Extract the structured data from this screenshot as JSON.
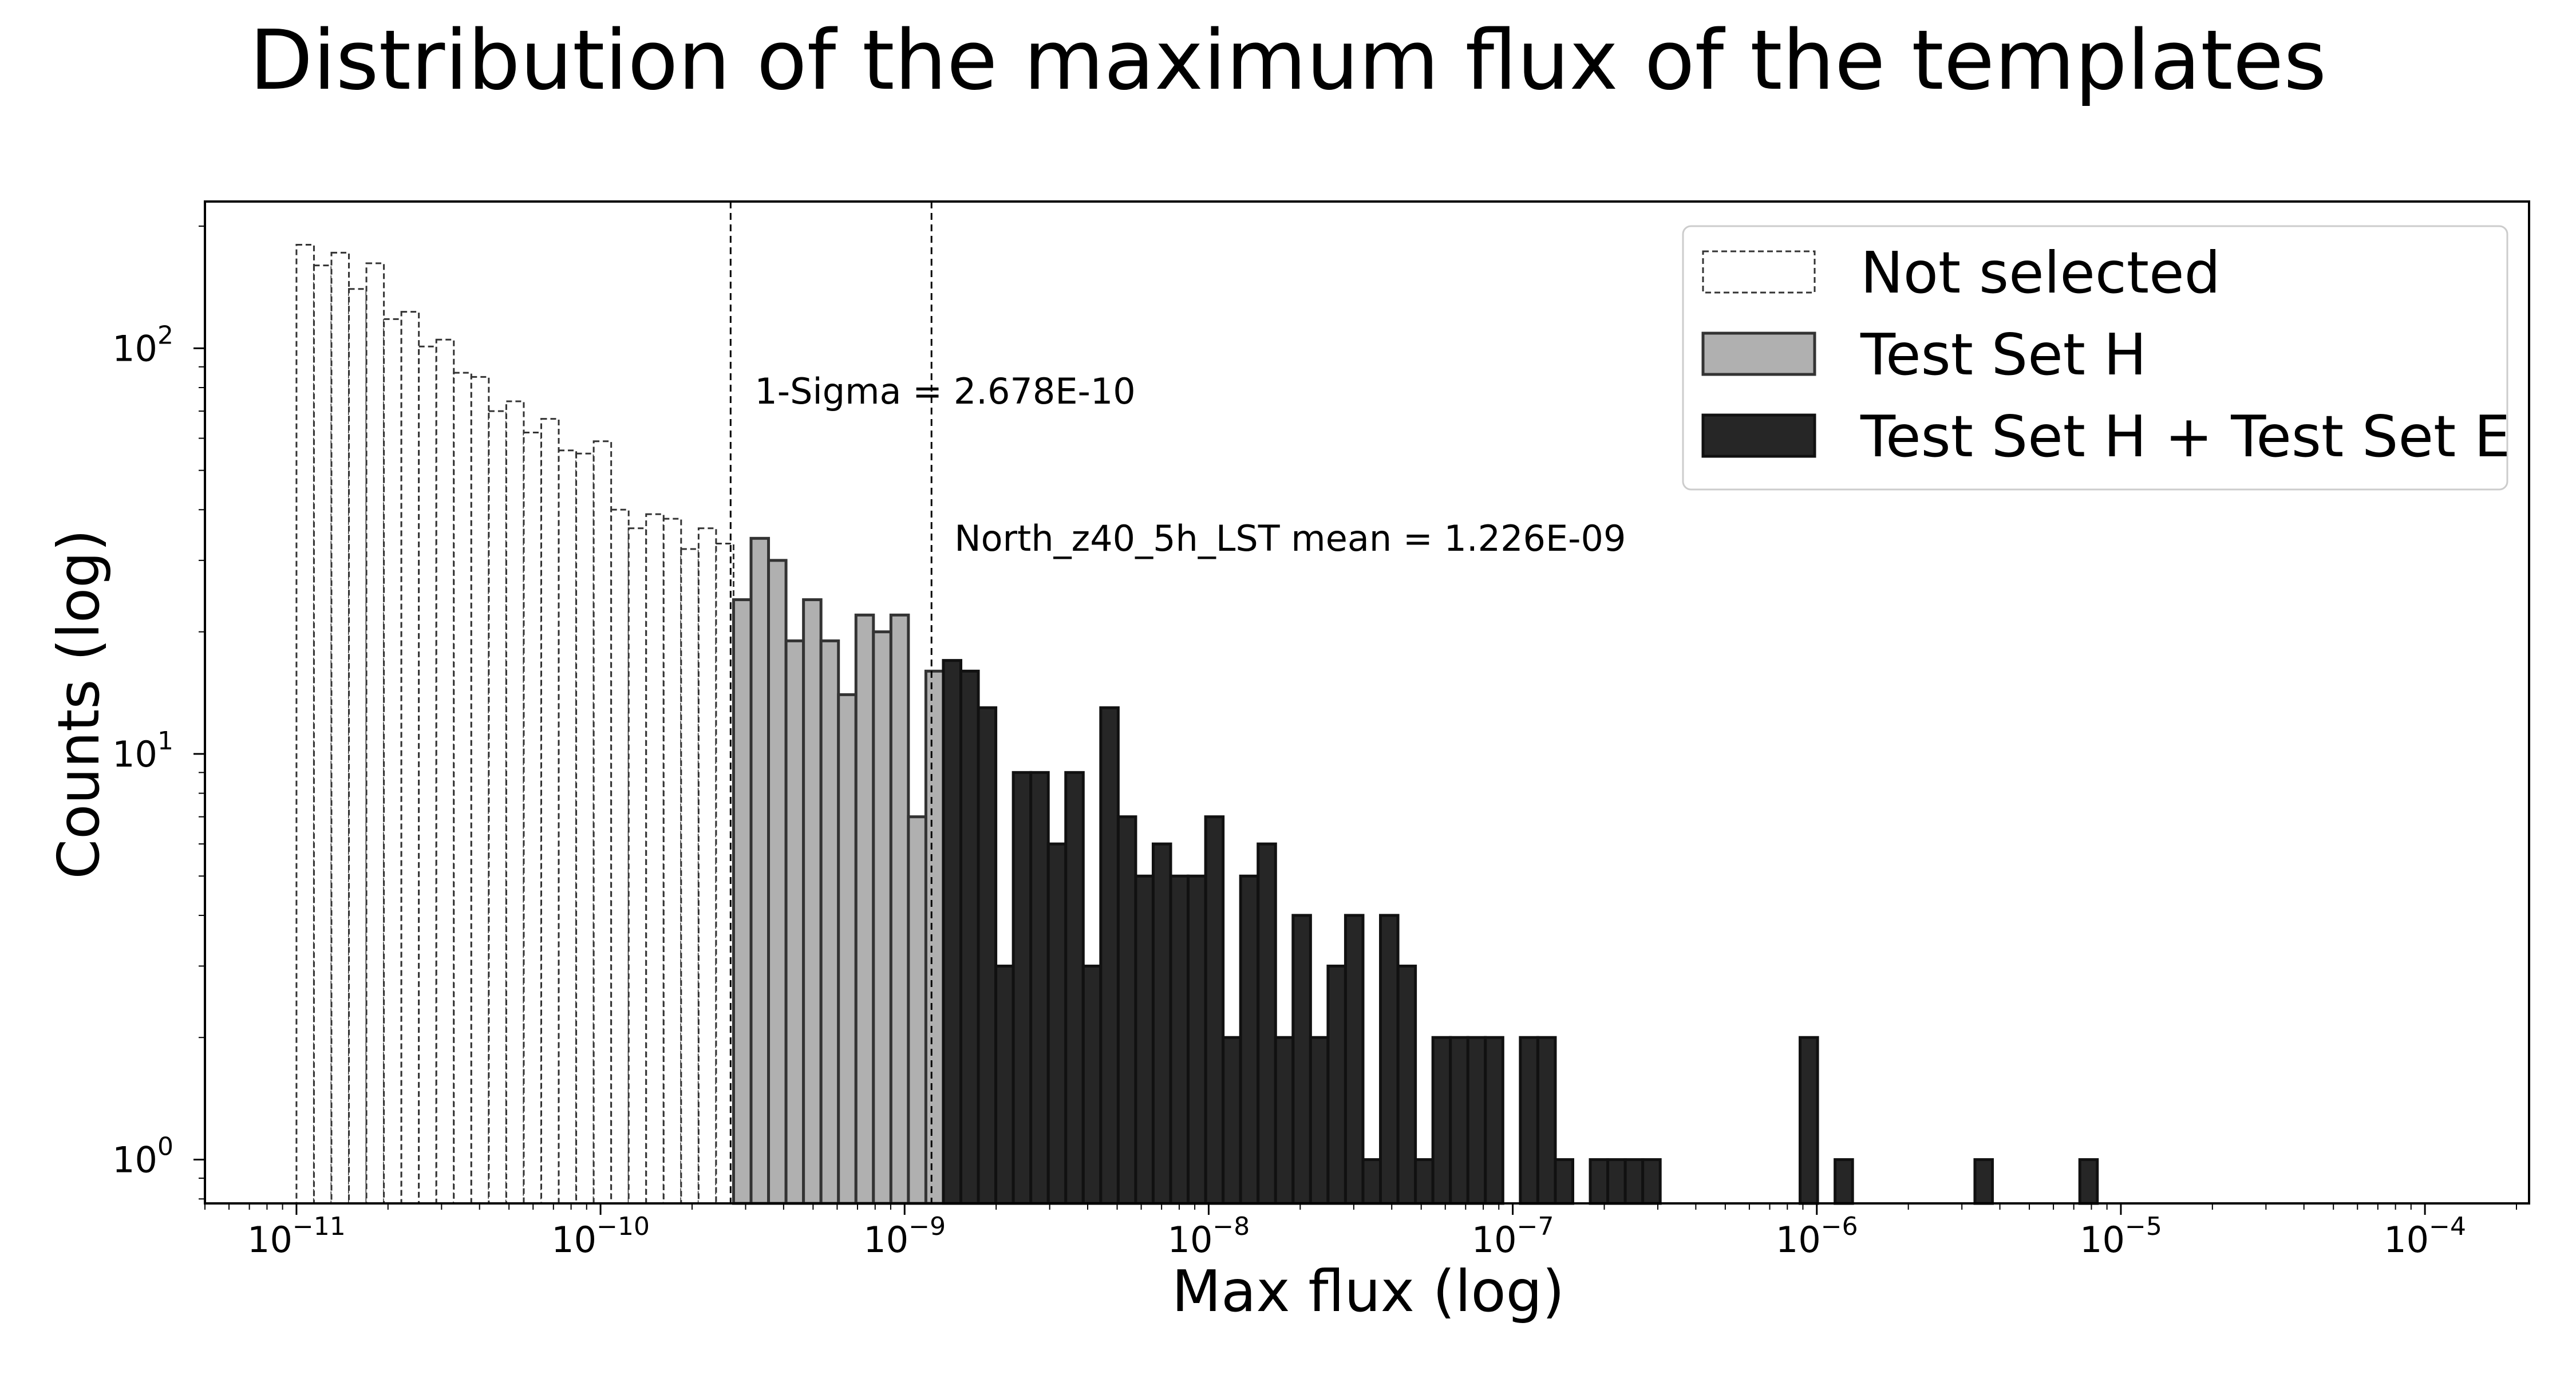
{
  "chart_data": {
    "type": "histogram",
    "title": "Distribution of the maximum flux of the templates",
    "xlabel": "Max flux (log)",
    "ylabel": "Counts (log)",
    "xscale": "log",
    "yscale": "log",
    "xlim": [
      5e-12,
      0.00022
    ],
    "ylim": [
      0.78,
      230
    ],
    "x_ticks": [
      {
        "value": 1e-11,
        "base": "10",
        "exp": "−11"
      },
      {
        "value": 1e-10,
        "base": "10",
        "exp": "−10"
      },
      {
        "value": 1e-09,
        "base": "10",
        "exp": "−9"
      },
      {
        "value": 1e-08,
        "base": "10",
        "exp": "−8"
      },
      {
        "value": 1e-07,
        "base": "10",
        "exp": "−7"
      },
      {
        "value": 1e-06,
        "base": "10",
        "exp": "−6"
      },
      {
        "value": 1e-05,
        "base": "10",
        "exp": "−5"
      },
      {
        "value": 0.0001,
        "base": "10",
        "exp": "−4"
      }
    ],
    "y_ticks": [
      {
        "value": 1,
        "base": "10",
        "exp": "0"
      },
      {
        "value": 10,
        "base": "10",
        "exp": "1"
      },
      {
        "value": 100,
        "base": "10",
        "exp": "2"
      }
    ],
    "bin_log10_start": -11,
    "bin_log10_width": 0.0575,
    "grid": false,
    "legend_position": "top-right",
    "vlines": [
      {
        "x": 2.678e-10,
        "label": "1-Sigma = 2.678E-10",
        "style": "dashed"
      },
      {
        "x": 1.226e-09,
        "label": "North_z40_5h_LST mean = 1.226E-09",
        "style": "dashed"
      }
    ],
    "series": [
      {
        "name": "Not selected",
        "style": "dashed-outline",
        "fill": "#ffffff",
        "edge": "#333333",
        "bins": [
          {
            "i": 0,
            "count": 180
          },
          {
            "i": 1,
            "count": 160
          },
          {
            "i": 2,
            "count": 172
          },
          {
            "i": 3,
            "count": 140
          },
          {
            "i": 4,
            "count": 162
          },
          {
            "i": 5,
            "count": 118
          },
          {
            "i": 6,
            "count": 123
          },
          {
            "i": 7,
            "count": 101
          },
          {
            "i": 8,
            "count": 105
          },
          {
            "i": 9,
            "count": 87
          },
          {
            "i": 10,
            "count": 85
          },
          {
            "i": 11,
            "count": 70
          },
          {
            "i": 12,
            "count": 74
          },
          {
            "i": 13,
            "count": 62
          },
          {
            "i": 14,
            "count": 67
          },
          {
            "i": 15,
            "count": 56
          },
          {
            "i": 16,
            "count": 55
          },
          {
            "i": 17,
            "count": 59
          },
          {
            "i": 18,
            "count": 40
          },
          {
            "i": 19,
            "count": 36
          },
          {
            "i": 20,
            "count": 39
          },
          {
            "i": 21,
            "count": 38
          },
          {
            "i": 22,
            "count": 32
          },
          {
            "i": 23,
            "count": 36
          },
          {
            "i": 24,
            "count": 33
          }
        ]
      },
      {
        "name": "Test Set H",
        "style": "filled",
        "fill": "#b0b0b0",
        "edge": "#333333",
        "bins": [
          {
            "i": 25,
            "count": 24
          },
          {
            "i": 26,
            "count": 34
          },
          {
            "i": 27,
            "count": 30
          },
          {
            "i": 28,
            "count": 19
          },
          {
            "i": 29,
            "count": 24
          },
          {
            "i": 30,
            "count": 19
          },
          {
            "i": 31,
            "count": 14
          },
          {
            "i": 32,
            "count": 22
          },
          {
            "i": 33,
            "count": 20
          },
          {
            "i": 34,
            "count": 22
          },
          {
            "i": 35,
            "count": 7
          },
          {
            "i": 36,
            "count": 16
          }
        ]
      },
      {
        "name": "Test Set H + Test Set E",
        "style": "filled",
        "fill": "#262626",
        "edge": "#111111",
        "bins": [
          {
            "i": 37,
            "count": 17
          },
          {
            "i": 38,
            "count": 16
          },
          {
            "i": 39,
            "count": 13
          },
          {
            "i": 40,
            "count": 3
          },
          {
            "i": 41,
            "count": 9
          },
          {
            "i": 42,
            "count": 9
          },
          {
            "i": 43,
            "count": 6
          },
          {
            "i": 44,
            "count": 9
          },
          {
            "i": 45,
            "count": 3
          },
          {
            "i": 46,
            "count": 13
          },
          {
            "i": 47,
            "count": 7
          },
          {
            "i": 48,
            "count": 5
          },
          {
            "i": 49,
            "count": 6
          },
          {
            "i": 50,
            "count": 5
          },
          {
            "i": 51,
            "count": 5
          },
          {
            "i": 52,
            "count": 7
          },
          {
            "i": 53,
            "count": 2
          },
          {
            "i": 54,
            "count": 5
          },
          {
            "i": 55,
            "count": 6
          },
          {
            "i": 56,
            "count": 2
          },
          {
            "i": 57,
            "count": 4
          },
          {
            "i": 58,
            "count": 2
          },
          {
            "i": 59,
            "count": 3
          },
          {
            "i": 60,
            "count": 4
          },
          {
            "i": 61,
            "count": 1
          },
          {
            "i": 62,
            "count": 4
          },
          {
            "i": 63,
            "count": 3
          },
          {
            "i": 64,
            "count": 1
          },
          {
            "i": 65,
            "count": 2
          },
          {
            "i": 66,
            "count": 2
          },
          {
            "i": 67,
            "count": 2
          },
          {
            "i": 68,
            "count": 2
          },
          {
            "i": 70,
            "count": 2
          },
          {
            "i": 71,
            "count": 2
          },
          {
            "i": 72,
            "count": 1
          },
          {
            "i": 74,
            "count": 1
          },
          {
            "i": 75,
            "count": 1
          },
          {
            "i": 76,
            "count": 1
          },
          {
            "i": 77,
            "count": 1
          },
          {
            "i": 86,
            "count": 2
          },
          {
            "i": 88,
            "count": 1
          },
          {
            "i": 96,
            "count": 1
          },
          {
            "i": 102,
            "count": 1
          }
        ]
      }
    ]
  }
}
